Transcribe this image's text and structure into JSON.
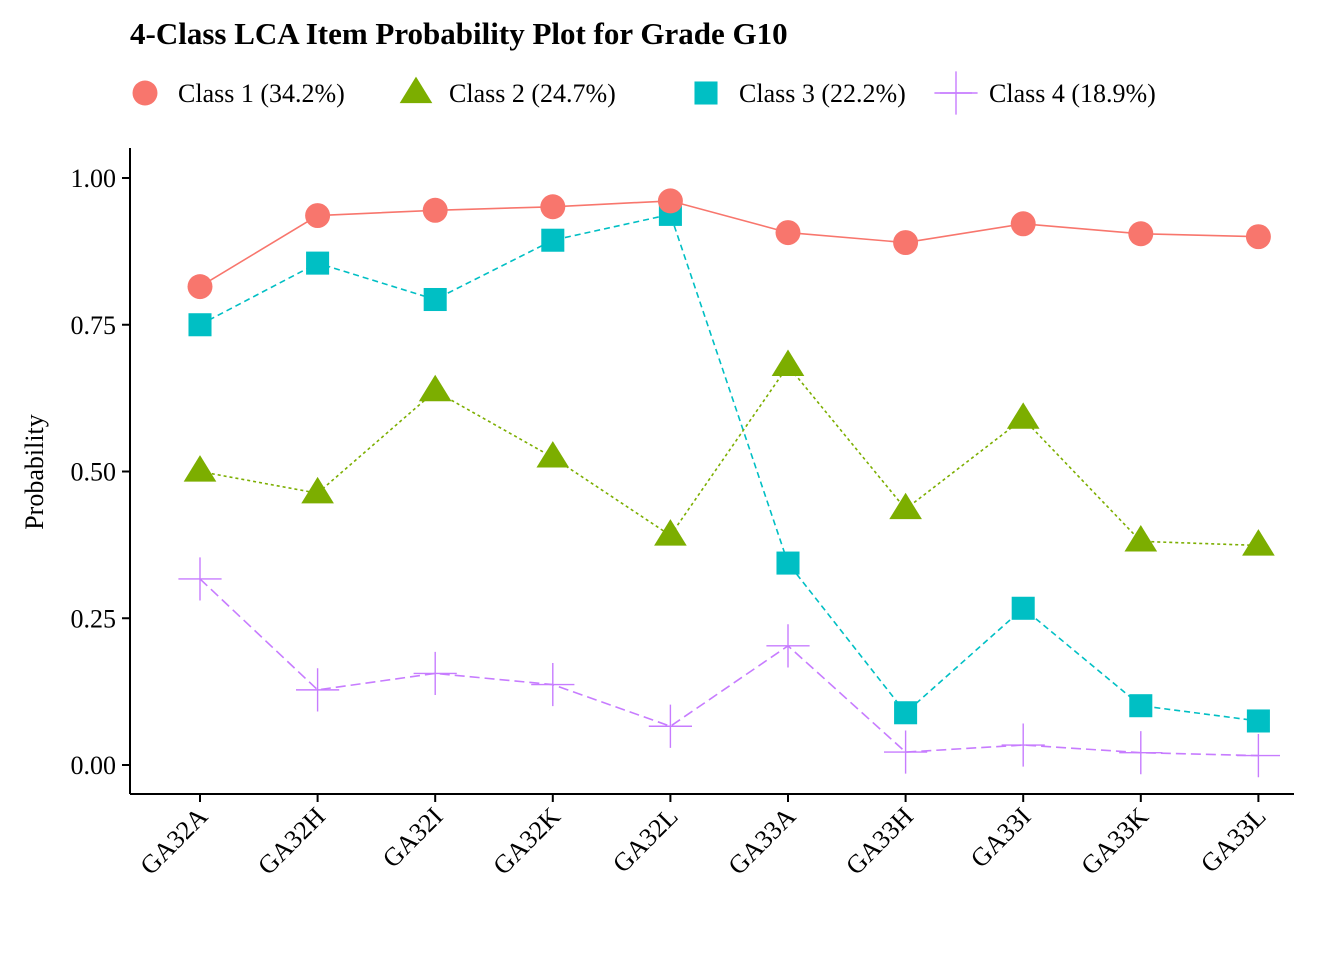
{
  "chart_data": {
    "type": "line",
    "title": "4-Class LCA Item Probability Plot for Grade G10",
    "xlabel": "",
    "ylabel": "Probability",
    "ylim": [
      -0.05,
      1.05
    ],
    "yticks": [
      "0.00",
      "0.25",
      "0.50",
      "0.75",
      "1.00"
    ],
    "yticks_values": [
      0,
      0.25,
      0.5,
      0.75,
      1.0
    ],
    "grid": false,
    "legend_position": "top",
    "categories": [
      "GA32A",
      "GA32H",
      "GA32I",
      "GA32K",
      "GA32L",
      "GA33A",
      "GA33H",
      "GA33I",
      "GA33K",
      "GA33L"
    ],
    "series": [
      {
        "name": "Class 1 (34.2%)",
        "marker": "circle",
        "line": "solid",
        "color": "#F8766D",
        "values": [
          0.815,
          0.936,
          0.945,
          0.951,
          0.961,
          0.907,
          0.89,
          0.922,
          0.905,
          0.9
        ]
      },
      {
        "name": "Class 2 (24.7%)",
        "marker": "triangle",
        "line": "dotted",
        "color": "#7CAE00",
        "values": [
          0.5,
          0.463,
          0.637,
          0.524,
          0.391,
          0.68,
          0.436,
          0.59,
          0.381,
          0.374
        ]
      },
      {
        "name": "Class 3 (22.2%)",
        "marker": "square",
        "line": "dashed",
        "color": "#00BFC4",
        "values": [
          0.75,
          0.855,
          0.793,
          0.894,
          0.938,
          0.344,
          0.089,
          0.267,
          0.101,
          0.075
        ]
      },
      {
        "name": "Class 4 (18.9%)",
        "marker": "plus",
        "line": "longdash",
        "color": "#C77CFF",
        "values": [
          0.317,
          0.128,
          0.156,
          0.137,
          0.066,
          0.203,
          0.022,
          0.034,
          0.021,
          0.016
        ]
      }
    ]
  }
}
